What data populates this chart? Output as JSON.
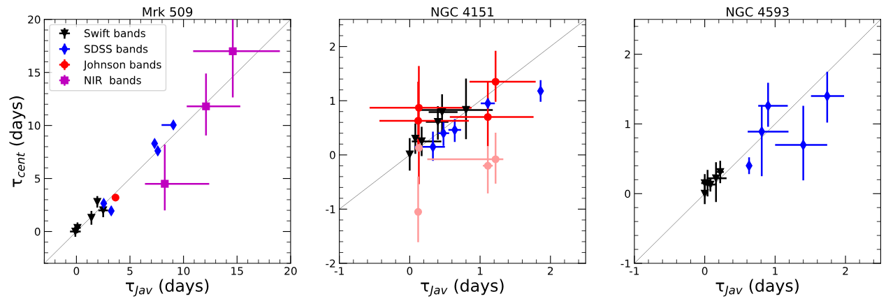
{
  "chart_data": [
    {
      "type": "scatter",
      "title": "Mrk 509",
      "xlabel": "τ$_{Jav}$ (days)",
      "ylabel": "τ$_{cent}$ (days)",
      "xlim": [
        -3,
        20
      ],
      "ylim": [
        -3,
        20
      ],
      "xticks": [
        0,
        5,
        10,
        15,
        20
      ],
      "yticks": [
        0,
        5,
        10,
        15,
        20
      ],
      "grid": false,
      "legend": "top left",
      "series": [
        {
          "name": "Swift bands",
          "color": "#000000",
          "marker": "triangle",
          "x": [
            -0.1,
            0.1,
            1.4,
            1.95,
            2.5
          ],
          "values": [
            0,
            0.35,
            1.3,
            2.8,
            2.0
          ],
          "errors": [
            0.5,
            0.5,
            0.65,
            0.55,
            0.65
          ],
          "xerrors": [
            0.5,
            0.3,
            0.1,
            0.1,
            0.45
          ]
        },
        {
          "name": "SDSS bands",
          "color": "#0000ff",
          "marker": "diamond",
          "x": [
            2.55,
            3.25,
            7.3,
            7.6,
            9.05
          ],
          "values": [
            2.65,
            1.95,
            8.3,
            7.6,
            10.05
          ],
          "errors": [
            0.4,
            0.4,
            0.4,
            0.4,
            0.3
          ],
          "xerrors": [
            null,
            null,
            null,
            null,
            [
              7.95,
              9.05
            ]
          ]
        },
        {
          "name": "Johnson bands",
          "color": "#ff0000",
          "marker": "circle",
          "x": [
            3.65
          ],
          "values": [
            3.2
          ],
          "errors": [
            0.3
          ],
          "xerrors": [
            null
          ]
        },
        {
          "name": "NIR  bands",
          "color": "#bf00bf",
          "marker": "square",
          "x": [
            8.25,
            12.1,
            14.6
          ],
          "values": [
            4.5,
            11.8,
            17.0
          ],
          "errors": [
            [
              2.0,
              8.2
            ],
            [
              9.05,
              14.9
            ],
            [
              12.65,
              20
            ]
          ],
          "xerrors": [
            [
              6.4,
              12.4
            ],
            [
              10.3,
              15.3
            ],
            [
              10.9,
              19.0
            ]
          ]
        },
        {
          "type": "line",
          "color": "#808080",
          "x": [
            -3,
            20
          ],
          "values": [
            -3,
            20
          ]
        }
      ]
    },
    {
      "type": "scatter",
      "title": "NGC 4151",
      "xlabel": "τ$_{Jav}$ (days)",
      "xlim": [
        -1,
        2.5
      ],
      "ylim": [
        -2,
        2.5
      ],
      "xticks": [
        -1,
        0,
        1,
        2
      ],
      "yticks": [
        -2,
        -1,
        0,
        1,
        2
      ],
      "grid": false,
      "series": [
        {
          "color": "#000000",
          "marker": "triangle",
          "x": [
            0,
            0.08,
            0.17,
            0.4,
            0.46,
            0.8
          ],
          "values": [
            0.01,
            0.3,
            0.25,
            0.61,
            0.79,
            0.83
          ],
          "errors": [
            0.3,
            0.28,
            0.27,
            [
              0.28,
              0.9
            ],
            [
              0.41,
              1.12
            ],
            [
              0.29,
              1.41
            ]
          ],
          "xerrors": [
            null,
            null,
            [
              0.03,
              0.45
            ],
            [
              0.23,
              0.55
            ],
            [
              0.27,
              0.68
            ],
            [
              0.1,
              1.18
            ]
          ]
        },
        {
          "color": "#0000ff",
          "marker": "diamond",
          "x": [
            0.33,
            0.48,
            0.64,
            1.11,
            1.86
          ],
          "values": [
            0.15,
            0.4,
            0.46,
            0.95,
            1.18
          ],
          "errors": [
            [
              -0.11,
              0.43
            ],
            [
              0.17,
              0.6
            ],
            [
              0.24,
              0.66
            ],
            0.1,
            0.2
          ],
          "xerrors": [
            [
              0.07,
              0.5
            ],
            0.08,
            0.09,
            0.1,
            null
          ]
        },
        {
          "color": "#ff0000",
          "marker": "circle",
          "x": [
            0.13,
            0.12,
            1.22,
            1.11
          ],
          "values": [
            0.87,
            0.63,
            1.35,
            0.7
          ],
          "errors": [
            [
              -0.54,
              1.64
            ],
            [
              0.11,
              1.35
            ],
            [
              0.98,
              1.92
            ],
            [
              0.16,
              1.36
            ]
          ],
          "xerrors": [
            [
              -0.57,
              0.88
            ],
            [
              -0.43,
              0.84
            ],
            [
              0.85,
              1.79
            ],
            [
              0.57,
              1.76
            ]
          ]
        },
        {
          "color": "#ff9a9a",
          "marker": "circle",
          "x": [
            0.12,
            0.13,
            1.11,
            1.22
          ],
          "values": [
            -1.05,
            0.13,
            -0.2,
            -0.08
          ],
          "errors": [
            [
              -1.61,
              -0.4
            ],
            null,
            [
              -0.71,
              0.16
            ],
            [
              -0.53,
              0.41
            ]
          ],
          "xerrors": [
            null,
            null,
            0.07,
            [
              0.25,
              1.33
            ]
          ]
        },
        {
          "type": "line",
          "color": "#808080",
          "x": [
            -1,
            2.5
          ],
          "values": [
            -1,
            2.5
          ]
        }
      ]
    },
    {
      "type": "scatter",
      "title": "NGC 4593",
      "xlabel": "τ$_{Jav}$ (days)",
      "xlim": [
        -1,
        2.5
      ],
      "ylim": [
        -1,
        2.5
      ],
      "xticks": [
        -1,
        0,
        1,
        2
      ],
      "yticks": [
        -1,
        0,
        1,
        2
      ],
      "grid": false,
      "series": [
        {
          "color": "#000000",
          "marker": "triangle",
          "x": [
            0,
            0,
            0.04,
            0.08,
            0.16,
            0.22
          ],
          "values": [
            0,
            0.15,
            0.15,
            0.13,
            0.22,
            0.31
          ],
          "errors": [
            0.15,
            0.13,
            0.19,
            0.1,
            [
              -0.12,
              0.45
            ],
            0.16
          ],
          "xerrors": [
            null,
            0.05,
            null,
            0.08,
            [
              0.03,
              0.31
            ],
            0.05
          ]
        },
        {
          "color": "#0000ff",
          "marker": "diamond",
          "x": [
            0.63,
            0.81,
            0.9,
            1.4,
            1.74
          ],
          "values": [
            0.4,
            0.89,
            1.26,
            0.7,
            1.4
          ],
          "errors": [
            0.12,
            [
              0.25,
              1.27
            ],
            [
              0.96,
              1.59
            ],
            [
              0.19,
              1.26
            ],
            [
              1.02,
              1.75
            ]
          ],
          "xerrors": [
            null,
            [
              0.61,
              1.19
            ],
            [
              0.76,
              1.18
            ],
            [
              1.0,
              1.74
            ],
            [
              1.51,
              1.98
            ]
          ]
        },
        {
          "type": "line",
          "color": "#808080",
          "x": [
            -1,
            2.5
          ],
          "values": [
            -1,
            2.5
          ]
        }
      ]
    }
  ]
}
